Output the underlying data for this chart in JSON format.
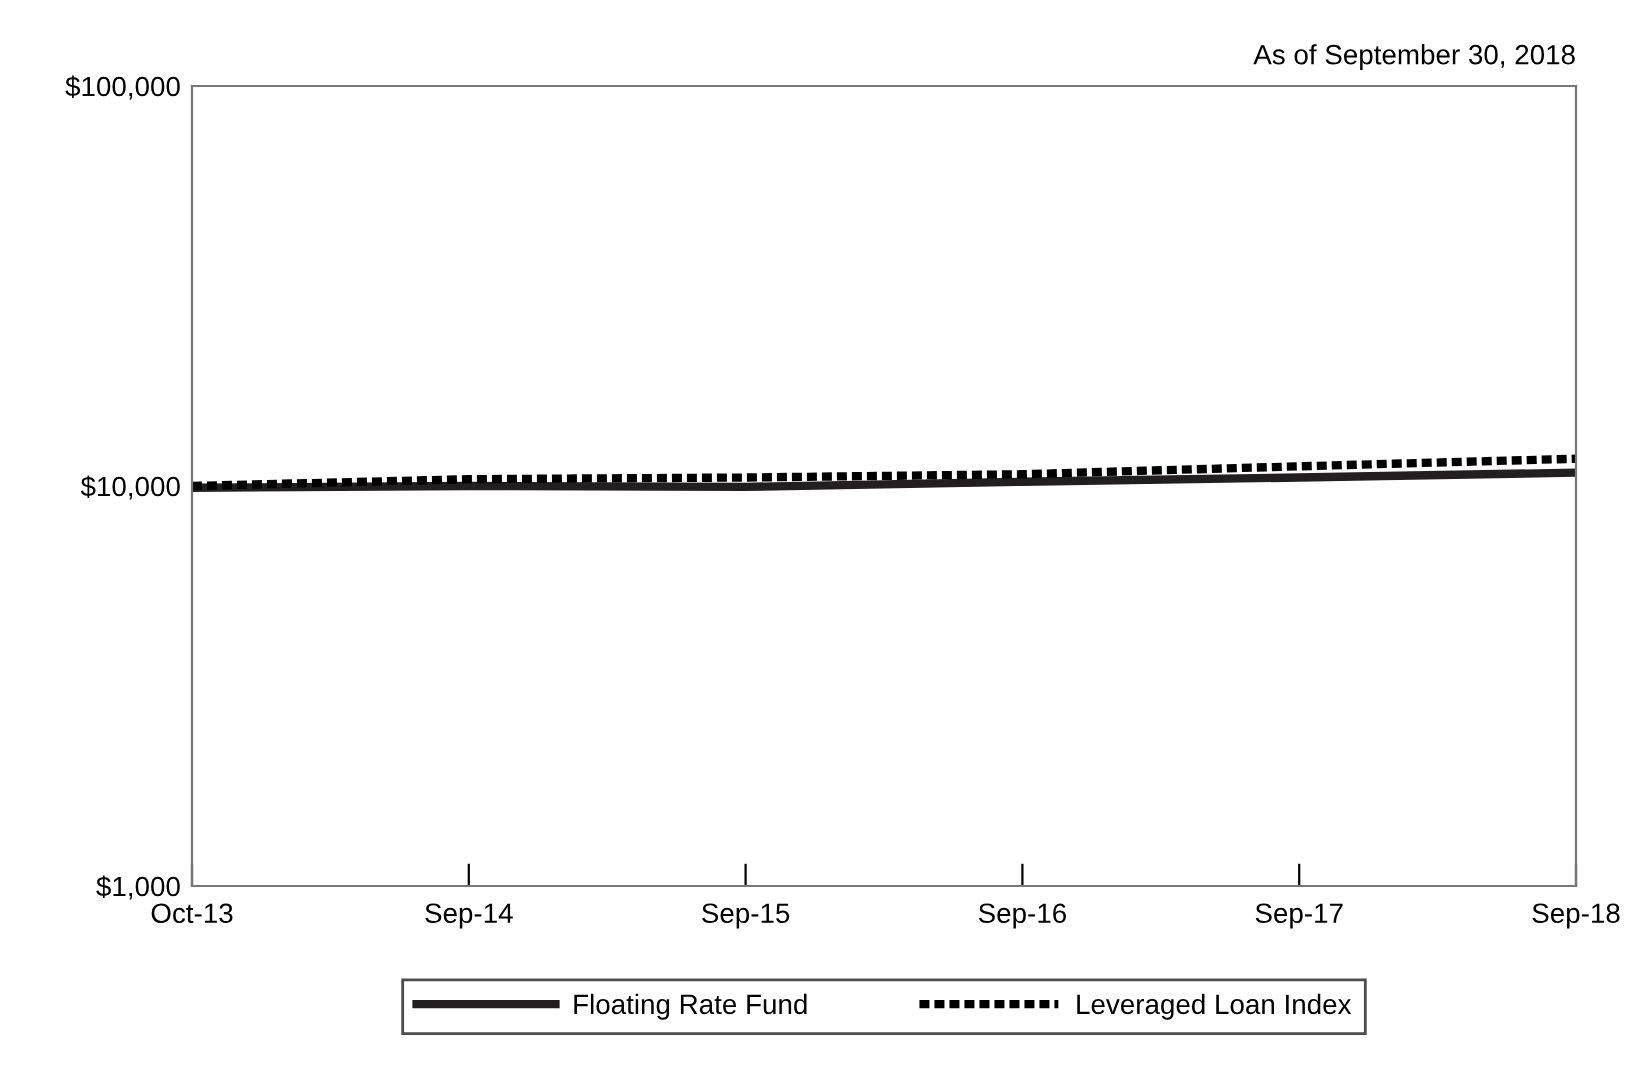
{
  "chart_data": {
    "type": "line",
    "subtitle": "As of September 30, 2018",
    "categories": [
      "Oct-13",
      "Sep-14",
      "Sep-15",
      "Sep-16",
      "Sep-17",
      "Sep-18"
    ],
    "series": [
      {
        "name": "Floating Rate Fund",
        "color": "#231f20",
        "line_style": "solid",
        "values": [
          9900,
          10000,
          9950,
          10250,
          10500,
          10800
        ]
      },
      {
        "name": "Leveraged Loan Index",
        "color": "#000000",
        "line_style": "dotted",
        "values": [
          10000,
          10400,
          10500,
          10700,
          11200,
          11700
        ]
      }
    ],
    "log": true,
    "ylim": [
      1000,
      100000
    ],
    "yticks": [
      {
        "value": 1000,
        "label": "$1,000"
      },
      {
        "value": 10000,
        "label": "$10,000"
      },
      {
        "value": 100000,
        "label": "$100,000"
      }
    ],
    "grid": false,
    "legend": "bottom",
    "marker": "none"
  }
}
